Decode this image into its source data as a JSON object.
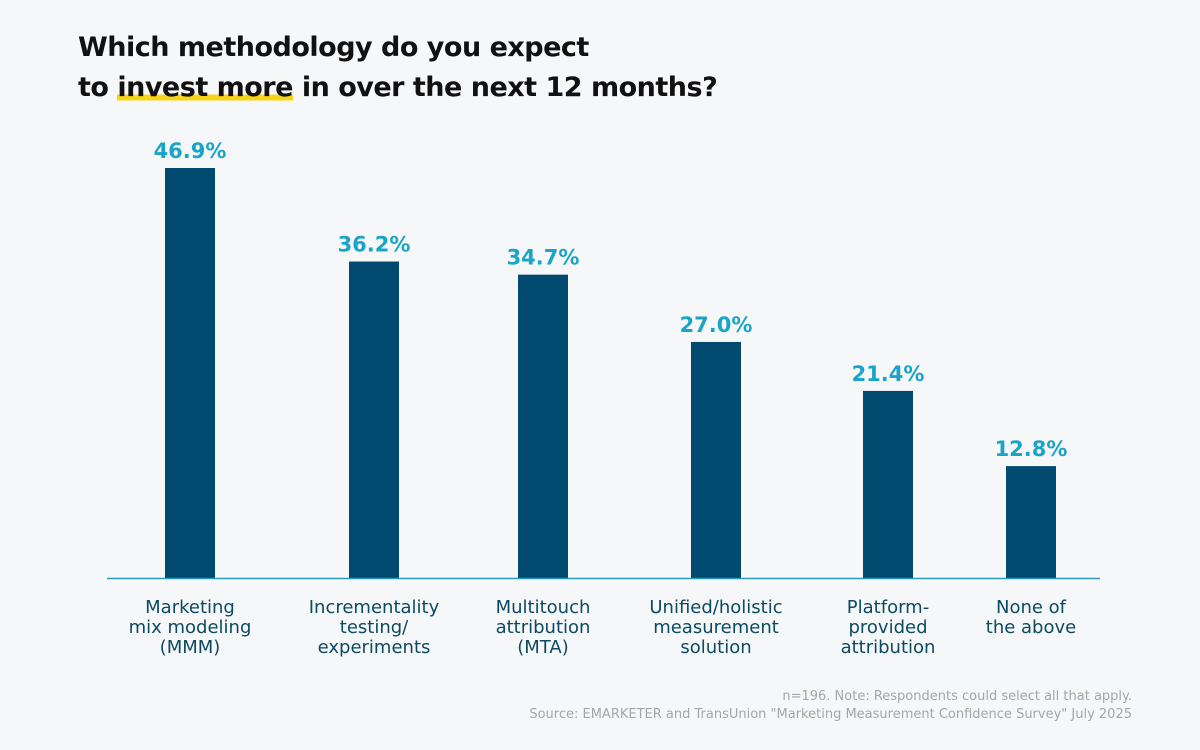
{
  "chart_data": {
    "type": "bar",
    "title_parts": [
      "Which methodology do you expect to ",
      "invest more",
      " in over the next 12 months?"
    ],
    "categories": [
      "Marketing mix modeling (MMM)",
      "Incrementality testing/ experiments",
      "Multitouch attribution (MTA)",
      "Unified/holistic measurement solution",
      "Platform- provided attribution",
      "None of the above"
    ],
    "category_lines": [
      [
        "Marketing",
        "mix modeling",
        "(MMM)"
      ],
      [
        "Incrementality",
        "testing/",
        "experiments"
      ],
      [
        "Multitouch",
        "attribution",
        "(MTA)"
      ],
      [
        "Unified/holistic",
        "measurement",
        "solution"
      ],
      [
        "Platform-",
        "provided",
        "attribution"
      ],
      [
        "None of",
        "the above"
      ]
    ],
    "values": [
      46.9,
      36.2,
      34.7,
      27.0,
      21.4,
      12.8
    ],
    "data_labels": [
      "46.9%",
      "36.2%",
      "34.7%",
      "27.0%",
      "21.4%",
      "12.8%"
    ],
    "unit": "%",
    "ylim": [
      0,
      50
    ],
    "grid": false,
    "colors": {
      "bar": "#004a70",
      "label": "#1aa5c8",
      "axis": "#2a9bb5",
      "highlight": "#f7d417"
    }
  },
  "footnote": {
    "note": "n=196. Note: Respondents could select all that apply.",
    "source": "Source: EMARKETER and TransUnion \"Marketing Measurement Confidence Survey\" July 2025"
  }
}
